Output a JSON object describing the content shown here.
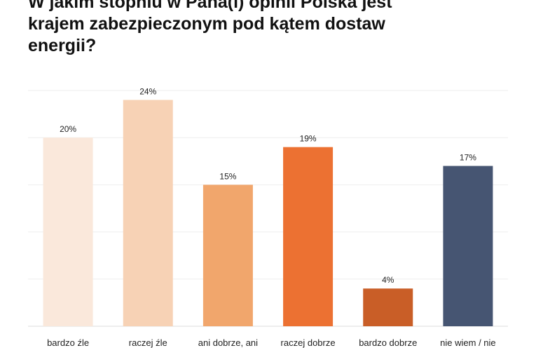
{
  "chart_data": {
    "type": "bar",
    "title": "W jakim stopniu w Pana(i) opinii Polska jest\nkrajem zabezpieczonym pod kątem dostaw\nenergii?",
    "categories": [
      "bardzo źle",
      "raczej źle",
      "ani dobrze, ani",
      "raczej dobrze",
      "bardzo dobrze",
      "nie wiem / nie"
    ],
    "values": [
      20,
      24,
      15,
      19,
      4,
      17
    ],
    "value_labels": [
      "20%",
      "24%",
      "15%",
      "19%",
      "4%",
      "17%"
    ],
    "colors": [
      "#FAE8DB",
      "#F7D2B5",
      "#F1A66C",
      "#EC7132",
      "#C95E27",
      "#465572"
    ],
    "ylim": [
      0,
      25
    ],
    "grid": true,
    "legend": "none"
  }
}
